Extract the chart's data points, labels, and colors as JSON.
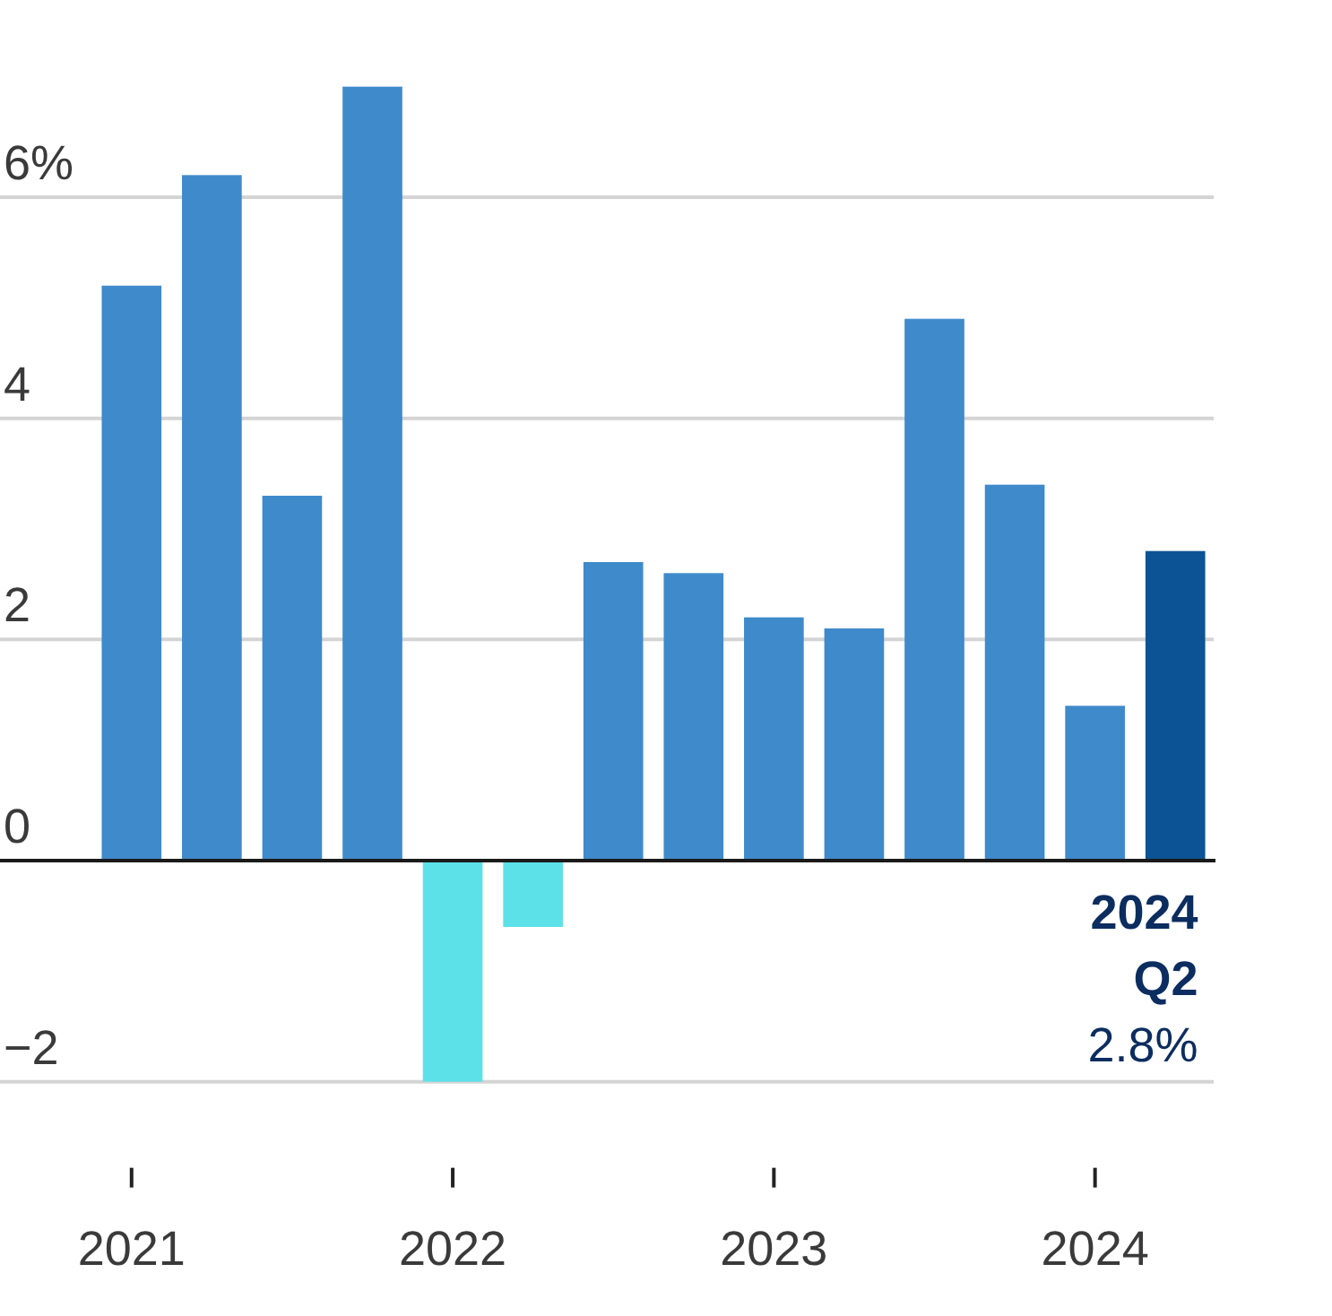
{
  "chart_data": {
    "type": "bar",
    "categories": [
      "2021",
      null,
      null,
      null,
      "2022",
      null,
      null,
      null,
      "2023",
      null,
      null,
      null,
      "2024",
      null
    ],
    "values": [
      5.2,
      6.2,
      3.3,
      7.0,
      -2.0,
      -0.6,
      2.7,
      2.6,
      2.2,
      2.1,
      4.9,
      3.4,
      1.4,
      2.8
    ],
    "colors": [
      "#3f8acb",
      "#3f8acb",
      "#3f8acb",
      "#3f8acb",
      "#5ce1e9",
      "#5ce1e9",
      "#3f8acb",
      "#3f8acb",
      "#3f8acb",
      "#3f8acb",
      "#3f8acb",
      "#3f8acb",
      "#3f8acb",
      "#0b5394"
    ],
    "ylim": [
      -2,
      7
    ],
    "yticks": [
      {
        "value": 6,
        "label": "6%"
      },
      4,
      2,
      0,
      {
        "value": -2,
        "label": "−2"
      }
    ],
    "grid": "y",
    "annotations": [
      "2024 Q2",
      "2.8%"
    ]
  }
}
